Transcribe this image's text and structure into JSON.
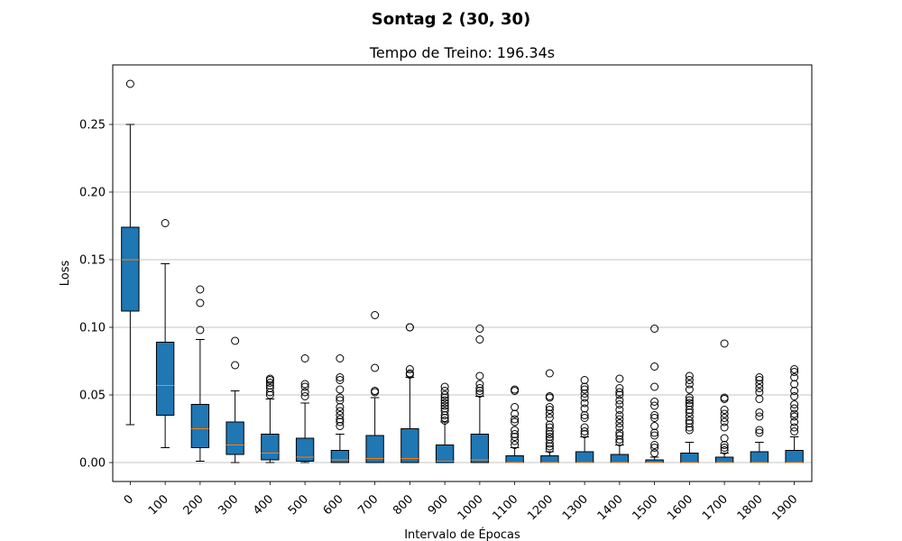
{
  "chart_data": {
    "type": "boxplot",
    "suptitle": "Sontag 2 (30, 30)",
    "title": "Tempo de Treino: 196.34s",
    "xlabel": "Intervalo de Épocas",
    "ylabel": "Loss",
    "ylim": [
      -0.014,
      0.294
    ],
    "yticks": [
      0.0,
      0.05,
      0.1,
      0.15,
      0.2,
      0.25
    ],
    "ytick_labels": [
      "0.00",
      "0.05",
      "0.10",
      "0.15",
      "0.20",
      "0.25"
    ],
    "grid": "y",
    "box_color": "#1f77b4",
    "median_color": "#ff7f0e",
    "categories": [
      "0",
      "100",
      "200",
      "300",
      "400",
      "500",
      "600",
      "700",
      "800",
      "900",
      "1000",
      "1100",
      "1200",
      "1300",
      "1400",
      "1500",
      "1600",
      "1700",
      "1800",
      "1900"
    ],
    "boxes": [
      {
        "whislo": 0.028,
        "q1": 0.112,
        "med": 0.15,
        "q3": 0.174,
        "whishi": 0.25,
        "fliers": [
          0.28
        ]
      },
      {
        "whislo": 0.011,
        "q1": 0.035,
        "med": 0.057,
        "q3": 0.089,
        "whishi": 0.147,
        "fliers": [
          0.177
        ]
      },
      {
        "whislo": 0.001,
        "q1": 0.011,
        "med": 0.025,
        "q3": 0.043,
        "whishi": 0.091,
        "fliers": [
          0.098,
          0.118,
          0.128
        ]
      },
      {
        "whislo": 0.0,
        "q1": 0.006,
        "med": 0.013,
        "q3": 0.03,
        "whishi": 0.053,
        "fliers": [
          0.072,
          0.09
        ]
      },
      {
        "whislo": 0.0,
        "q1": 0.002,
        "med": 0.007,
        "q3": 0.021,
        "whishi": 0.047,
        "fliers": [
          0.05,
          0.052,
          0.055,
          0.057,
          0.059,
          0.061,
          0.062
        ]
      },
      {
        "whislo": 0.0,
        "q1": 0.001,
        "med": 0.004,
        "q3": 0.018,
        "whishi": 0.044,
        "fliers": [
          0.049,
          0.052,
          0.056,
          0.058,
          0.077
        ]
      },
      {
        "whislo": 0.0,
        "q1": 0.0,
        "med": 0.002,
        "q3": 0.009,
        "whishi": 0.021,
        "fliers": [
          0.027,
          0.03,
          0.032,
          0.035,
          0.038,
          0.041,
          0.046,
          0.048,
          0.054,
          0.061,
          0.063,
          0.077
        ]
      },
      {
        "whislo": 0.0,
        "q1": 0.0,
        "med": 0.003,
        "q3": 0.02,
        "whishi": 0.048,
        "fliers": [
          0.052,
          0.053,
          0.07,
          0.109
        ]
      },
      {
        "whislo": 0.0,
        "q1": 0.0,
        "med": 0.003,
        "q3": 0.025,
        "whishi": 0.063,
        "fliers": [
          0.065,
          0.066,
          0.069,
          0.1,
          0.1
        ]
      },
      {
        "whislo": 0.0,
        "q1": 0.0,
        "med": 0.001,
        "q3": 0.013,
        "whishi": 0.03,
        "fliers": [
          0.031,
          0.033,
          0.035,
          0.038,
          0.04,
          0.042,
          0.044,
          0.046,
          0.048,
          0.05,
          0.053,
          0.056
        ]
      },
      {
        "whislo": 0.0,
        "q1": 0.0,
        "med": 0.002,
        "q3": 0.021,
        "whishi": 0.049,
        "fliers": [
          0.051,
          0.053,
          0.055,
          0.058,
          0.064,
          0.091,
          0.099
        ]
      },
      {
        "whislo": 0.0,
        "q1": 0.0,
        "med": 0.0,
        "q3": 0.005,
        "whishi": 0.011,
        "fliers": [
          0.013,
          0.016,
          0.019,
          0.021,
          0.024,
          0.03,
          0.032,
          0.036,
          0.041,
          0.053,
          0.054
        ]
      },
      {
        "whislo": 0.0,
        "q1": 0.0,
        "med": 0.0,
        "q3": 0.005,
        "whishi": 0.008,
        "fliers": [
          0.01,
          0.012,
          0.014,
          0.017,
          0.019,
          0.021,
          0.023,
          0.026,
          0.028,
          0.033,
          0.036,
          0.039,
          0.041,
          0.048,
          0.049,
          0.066
        ]
      },
      {
        "whislo": 0.0,
        "q1": 0.0,
        "med": 0.0,
        "q3": 0.008,
        "whishi": 0.019,
        "fliers": [
          0.021,
          0.023,
          0.026,
          0.033,
          0.035,
          0.04,
          0.044,
          0.048,
          0.051,
          0.054,
          0.056,
          0.061
        ]
      },
      {
        "whislo": 0.0,
        "q1": 0.0,
        "med": 0.0,
        "q3": 0.006,
        "whishi": 0.013,
        "fliers": [
          0.015,
          0.017,
          0.02,
          0.022,
          0.026,
          0.029,
          0.032,
          0.035,
          0.039,
          0.043,
          0.046,
          0.05,
          0.052,
          0.055,
          0.062
        ]
      },
      {
        "whislo": 0.0,
        "q1": 0.0,
        "med": 0.0,
        "q3": 0.002,
        "whishi": 0.004,
        "fliers": [
          0.007,
          0.011,
          0.013,
          0.02,
          0.022,
          0.027,
          0.033,
          0.035,
          0.042,
          0.045,
          0.056,
          0.071,
          0.099
        ]
      },
      {
        "whislo": 0.0,
        "q1": 0.0,
        "med": 0.0,
        "q3": 0.007,
        "whishi": 0.015,
        "fliers": [
          0.024,
          0.026,
          0.029,
          0.031,
          0.034,
          0.037,
          0.039,
          0.042,
          0.044,
          0.046,
          0.048,
          0.054,
          0.058,
          0.061,
          0.064
        ]
      },
      {
        "whislo": 0.0,
        "q1": 0.0,
        "med": 0.0,
        "q3": 0.004,
        "whishi": 0.007,
        "fliers": [
          0.009,
          0.011,
          0.013,
          0.018,
          0.026,
          0.03,
          0.033,
          0.036,
          0.039,
          0.047,
          0.048,
          0.088
        ]
      },
      {
        "whislo": 0.0,
        "q1": 0.0,
        "med": 0.0,
        "q3": 0.008,
        "whishi": 0.015,
        "fliers": [
          0.022,
          0.024,
          0.034,
          0.037,
          0.047,
          0.052,
          0.055,
          0.058,
          0.061,
          0.063
        ]
      },
      {
        "whislo": 0.0,
        "q1": 0.0,
        "med": 0.0,
        "q3": 0.009,
        "whishi": 0.019,
        "fliers": [
          0.023,
          0.026,
          0.03,
          0.034,
          0.036,
          0.04,
          0.043,
          0.049,
          0.053,
          0.058,
          0.063,
          0.067,
          0.069
        ]
      }
    ]
  }
}
